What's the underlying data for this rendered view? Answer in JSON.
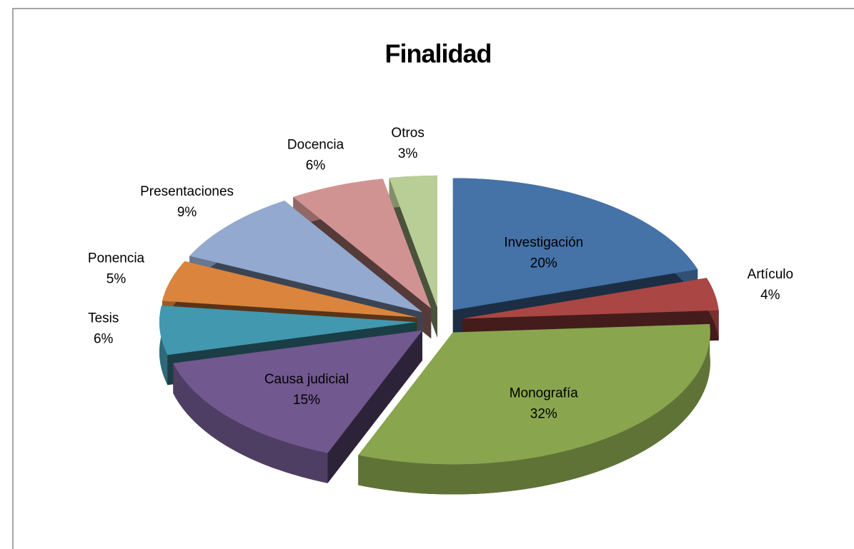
{
  "chart_data": {
    "type": "pie",
    "title": "Finalidad",
    "categories": [
      "Investigación",
      "Artículo",
      "Monografía",
      "Causa judicial",
      "Tesis",
      "Ponencia",
      "Presentaciones",
      "Docencia",
      "Otros"
    ],
    "values": [
      20,
      4,
      32,
      15,
      6,
      5,
      9,
      6,
      3
    ],
    "value_labels": [
      "20%",
      "4%",
      "32%",
      "15%",
      "6%",
      "5%",
      "9%",
      "6%",
      "3%"
    ],
    "colors": [
      "#4572a7",
      "#aa4643",
      "#89a54e",
      "#71588f",
      "#4198af",
      "#db843d",
      "#93a9cf",
      "#d19392",
      "#b9cd96"
    ]
  }
}
